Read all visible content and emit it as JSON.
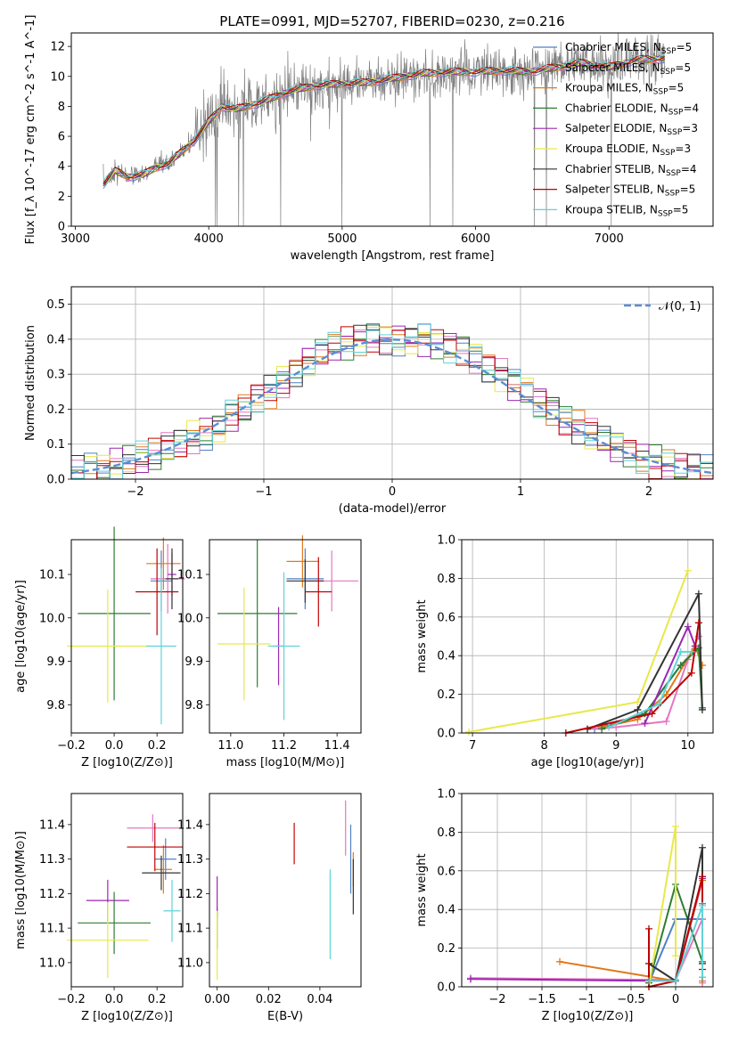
{
  "chart_data": [
    {
      "id": "spectrum",
      "type": "line",
      "title": "PLATE=0991, MJD=52707, FIBERID=0230, z=0.216",
      "xlabel": "wavelength [Angstrom, rest frame]",
      "ylabel": "Flux [f_λ 10^-17 erg cm^-2 s^-1 A^-1]",
      "xlim": [
        2970,
        7780
      ],
      "ylim": [
        0,
        12.9
      ],
      "xticks": [
        3000,
        4000,
        5000,
        6000,
        7000
      ],
      "yticks": [
        0,
        2,
        4,
        6,
        8,
        10,
        12
      ],
      "grid": false,
      "legend_position": "top-right",
      "data_color": "#808080",
      "data_x_range": [
        3210,
        7420
      ],
      "continuum": {
        "x": [
          3210,
          3300,
          3400,
          3500,
          3600,
          3700,
          3800,
          3900,
          4000,
          4100,
          4200,
          4400,
          4600,
          4800,
          5000,
          5200,
          5400,
          5600,
          5800,
          6000,
          6200,
          6400,
          6600,
          6800,
          7000,
          7200,
          7420
        ],
        "y": [
          2.8,
          3.7,
          3.3,
          3.4,
          3.9,
          4.2,
          5.0,
          5.8,
          7.0,
          8.0,
          7.8,
          8.3,
          9.0,
          9.4,
          9.5,
          9.6,
          9.9,
          10.2,
          10.3,
          10.3,
          10.4,
          10.3,
          10.6,
          10.9,
          10.6,
          11.1,
          11.2
        ]
      },
      "series": [
        {
          "name": "Chabrier MILES, N_SSP=5",
          "color": "#4f81c8"
        },
        {
          "name": "Salpeter MILES, N_SSP=5",
          "color": "#e377c2"
        },
        {
          "name": "Kroupa MILES, N_SSP=5",
          "color": "#e07a1a"
        },
        {
          "name": "Chabrier ELODIE, N_SSP=4",
          "color": "#2e7d32"
        },
        {
          "name": "Salpeter ELODIE, N_SSP=3",
          "color": "#9c27b0"
        },
        {
          "name": "Kroupa ELODIE, N_SSP=3",
          "color": "#e8e84a"
        },
        {
          "name": "Chabrier STELIB, N_SSP=4",
          "color": "#333333"
        },
        {
          "name": "Salpeter STELIB, N_SSP=5",
          "color": "#c00000"
        },
        {
          "name": "Kroupa STELIB, N_SSP=5",
          "color": "#5fd3d8"
        }
      ]
    },
    {
      "id": "residuals",
      "type": "histogram",
      "xlabel": "(data-model)/error",
      "ylabel": "Normed distribution",
      "xlim": [
        -2.5,
        2.5
      ],
      "ylim": [
        0,
        0.55
      ],
      "xticks": [
        -2,
        -1,
        0,
        1,
        2
      ],
      "yticks": [
        0.0,
        0.1,
        0.2,
        0.3,
        0.4,
        0.5
      ],
      "grid": true,
      "legend": "N(0,1)",
      "gaussian_color": "#5b8dd6",
      "bin_width": 0.1,
      "bin_centers": [
        -2.45,
        -2.35,
        -2.25,
        -2.15,
        -2.05,
        -1.95,
        -1.85,
        -1.75,
        -1.65,
        -1.55,
        -1.45,
        -1.35,
        -1.25,
        -1.15,
        -1.05,
        -0.95,
        -0.85,
        -0.75,
        -0.65,
        -0.55,
        -0.45,
        -0.35,
        -0.25,
        -0.15,
        -0.05,
        0.05,
        0.15,
        0.25,
        0.35,
        0.45,
        0.55,
        0.65,
        0.75,
        0.85,
        0.95,
        1.05,
        1.15,
        1.25,
        1.35,
        1.45,
        1.55,
        1.65,
        1.75,
        1.85,
        1.95,
        2.05,
        2.15,
        2.25,
        2.35,
        2.45
      ],
      "base_values": [
        0.02,
        0.03,
        0.03,
        0.04,
        0.05,
        0.06,
        0.07,
        0.09,
        0.1,
        0.12,
        0.13,
        0.15,
        0.18,
        0.2,
        0.23,
        0.25,
        0.28,
        0.31,
        0.34,
        0.36,
        0.38,
        0.39,
        0.4,
        0.41,
        0.4,
        0.4,
        0.4,
        0.4,
        0.39,
        0.38,
        0.37,
        0.35,
        0.32,
        0.3,
        0.27,
        0.25,
        0.22,
        0.2,
        0.17,
        0.15,
        0.13,
        0.11,
        0.09,
        0.08,
        0.06,
        0.05,
        0.04,
        0.03,
        0.03,
        0.02
      ]
    },
    {
      "id": "age-vs-Z",
      "type": "errorbar",
      "xlabel": "Z [log10(Z/Z⊙)]",
      "ylabel": "age [log10(age/yr)]",
      "xlim": [
        -0.2,
        0.32
      ],
      "ylim": [
        9.735,
        10.18
      ],
      "xticks": [
        -0.2,
        0.0,
        0.2
      ],
      "yticks": [
        9.8,
        9.9,
        10.0,
        10.1
      ],
      "points": [
        {
          "x": 0.22,
          "y": 10.085,
          "xerr": 0.05,
          "yerr": 0.07,
          "color": "#4f81c8"
        },
        {
          "x": 0.25,
          "y": 10.09,
          "xerr": 0.08,
          "yerr": 0.08,
          "color": "#e377c2"
        },
        {
          "x": 0.23,
          "y": 10.125,
          "xerr": 0.08,
          "yerr": 0.06,
          "color": "#e07a1a"
        },
        {
          "x": 0.0,
          "y": 10.01,
          "xerr": 0.17,
          "yerr": 0.2,
          "color": "#2e7d32"
        },
        {
          "x": 0.27,
          "y": 10.1,
          "xerr": 0.02,
          "yerr": 0.05,
          "color": "#9c27b0"
        },
        {
          "x": -0.03,
          "y": 9.935,
          "xerr": 0.19,
          "yerr": 0.13,
          "color": "#e8e84a"
        },
        {
          "x": 0.27,
          "y": 10.09,
          "xerr": 0.03,
          "yerr": 0.07,
          "color": "#333333"
        },
        {
          "x": 0.2,
          "y": 10.06,
          "xerr": 0.1,
          "yerr": 0.1,
          "color": "#c00000"
        },
        {
          "x": 0.22,
          "y": 9.935,
          "xerr": 0.07,
          "yerr": 0.18,
          "color": "#5fd3d8"
        }
      ]
    },
    {
      "id": "age-vs-mass",
      "type": "errorbar",
      "xlabel": "mass [log10(M/M⊙)]",
      "ylabel": "",
      "xlim": [
        10.92,
        11.49
      ],
      "ylim": [
        9.735,
        10.18
      ],
      "xticks": [
        11.0,
        11.2,
        11.4
      ],
      "yticks": [
        9.8,
        9.9,
        10.0,
        10.1
      ],
      "points": [
        {
          "x": 11.28,
          "y": 10.09,
          "xerr": 0.07,
          "yerr": 0.07,
          "color": "#4f81c8"
        },
        {
          "x": 11.38,
          "y": 10.085,
          "xerr": 0.1,
          "yerr": 0.07,
          "color": "#e377c2"
        },
        {
          "x": 11.27,
          "y": 10.13,
          "xerr": 0.06,
          "yerr": 0.06,
          "color": "#e07a1a"
        },
        {
          "x": 11.1,
          "y": 10.01,
          "xerr": 0.15,
          "yerr": 0.17,
          "color": "#2e7d32"
        },
        {
          "x": 11.18,
          "y": 9.935,
          "xerr": 0.02,
          "yerr": 0.09,
          "color": "#9c27b0"
        },
        {
          "x": 11.05,
          "y": 9.94,
          "xerr": 0.1,
          "yerr": 0.13,
          "color": "#e8e84a"
        },
        {
          "x": 11.28,
          "y": 10.085,
          "xerr": 0.07,
          "yerr": 0.05,
          "color": "#333333"
        },
        {
          "x": 11.33,
          "y": 10.06,
          "xerr": 0.05,
          "yerr": 0.08,
          "color": "#c00000"
        },
        {
          "x": 11.2,
          "y": 9.935,
          "xerr": 0.06,
          "yerr": 0.17,
          "color": "#5fd3d8"
        }
      ]
    },
    {
      "id": "massweight-vs-age",
      "type": "line",
      "xlabel": "age [log10(age/yr)]",
      "ylabel": "mass weight",
      "xlim": [
        6.85,
        10.35
      ],
      "ylim": [
        0,
        1
      ],
      "xticks": [
        7,
        8,
        9,
        10
      ],
      "yticks": [
        0.0,
        0.2,
        0.4,
        0.6,
        0.8,
        1.0
      ],
      "grid": true,
      "series": [
        {
          "color": "#4f81c8",
          "x": [
            8.7,
            9.4,
            9.9,
            10.1
          ],
          "y": [
            0.02,
            0.1,
            0.35,
            0.43
          ]
        },
        {
          "color": "#e377c2",
          "x": [
            8.6,
            9.0,
            9.7,
            10.0,
            10.15
          ],
          "y": [
            0.02,
            0.03,
            0.06,
            0.38,
            0.5
          ]
        },
        {
          "color": "#e07a1a",
          "x": [
            8.8,
            9.3,
            9.7,
            10.1,
            10.2
          ],
          "y": [
            0.03,
            0.07,
            0.2,
            0.45,
            0.35
          ]
        },
        {
          "color": "#2e7d32",
          "x": [
            8.8,
            9.4,
            9.9,
            10.15,
            10.2
          ],
          "y": [
            0.02,
            0.1,
            0.35,
            0.44,
            0.13
          ]
        },
        {
          "color": "#9c27b0",
          "x": [
            9.4,
            10.0,
            10.1
          ],
          "y": [
            0.05,
            0.55,
            0.45
          ]
        },
        {
          "color": "#e8e84a",
          "x": [
            6.95,
            9.3,
            10.0
          ],
          "y": [
            0.005,
            0.16,
            0.84
          ]
        },
        {
          "color": "#333333",
          "x": [
            8.6,
            9.3,
            10.15,
            10.2
          ],
          "y": [
            0.02,
            0.12,
            0.72,
            0.12
          ]
        },
        {
          "color": "#c00000",
          "x": [
            8.3,
            9.5,
            10.05,
            10.15
          ],
          "y": [
            0.0,
            0.1,
            0.31,
            0.57
          ]
        },
        {
          "color": "#5fd3d8",
          "x": [
            8.9,
            9.6,
            9.9,
            10.05
          ],
          "y": [
            0.03,
            0.15,
            0.42,
            0.42
          ]
        }
      ]
    },
    {
      "id": "mass-vs-Z",
      "type": "errorbar",
      "xlabel": "Z [log10(Z/Z⊙)]",
      "ylabel": "mass [log10(M/M⊙)]",
      "xlim": [
        -0.2,
        0.32
      ],
      "ylim": [
        10.93,
        11.49
      ],
      "xticks": [
        -0.2,
        0.0,
        0.2
      ],
      "yticks": [
        11.0,
        11.1,
        11.2,
        11.3,
        11.4
      ],
      "points": [
        {
          "x": 0.24,
          "y": 11.3,
          "xerr": 0.05,
          "yerr": 0.06,
          "color": "#4f81c8"
        },
        {
          "x": 0.18,
          "y": 11.39,
          "xerr": 0.12,
          "yerr": 0.04,
          "color": "#e377c2"
        },
        {
          "x": 0.23,
          "y": 11.27,
          "xerr": 0.04,
          "yerr": 0.07,
          "color": "#e07a1a"
        },
        {
          "x": 0.0,
          "y": 11.115,
          "xerr": 0.17,
          "yerr": 0.09,
          "color": "#2e7d32"
        },
        {
          "x": -0.03,
          "y": 11.18,
          "xerr": 0.1,
          "yerr": 0.06,
          "color": "#9c27b0"
        },
        {
          "x": -0.03,
          "y": 11.065,
          "xerr": 0.19,
          "yerr": 0.11,
          "color": "#e8e84a"
        },
        {
          "x": 0.22,
          "y": 11.26,
          "xerr": 0.09,
          "yerr": 0.05,
          "color": "#333333"
        },
        {
          "x": 0.19,
          "y": 11.335,
          "xerr": 0.13,
          "yerr": 0.07,
          "color": "#c00000"
        },
        {
          "x": 0.27,
          "y": 11.15,
          "xerr": 0.04,
          "yerr": 0.09,
          "color": "#5fd3d8"
        }
      ]
    },
    {
      "id": "mass-vs-EBV",
      "type": "errorbar",
      "xlabel": "E(B-V)",
      "ylabel": "",
      "xlim": [
        -0.003,
        0.056
      ],
      "ylim": [
        10.93,
        11.49
      ],
      "xticks": [
        0.0,
        0.02,
        0.04
      ],
      "yticks": [
        11.0,
        11.1,
        11.2,
        11.3,
        11.4
      ],
      "points": [
        {
          "x": 0.052,
          "y": 11.3,
          "yerr": 0.1,
          "color": "#4f81c8"
        },
        {
          "x": 0.05,
          "y": 11.39,
          "yerr": 0.08,
          "color": "#e377c2"
        },
        {
          "x": 0.053,
          "y": 11.27,
          "yerr": 0.05,
          "color": "#e07a1a"
        },
        {
          "x": 0.0,
          "y": 11.1,
          "yerr": 0.06,
          "color": "#2e7d32"
        },
        {
          "x": 0.0,
          "y": 11.19,
          "yerr": 0.06,
          "color": "#9c27b0"
        },
        {
          "x": 0.0,
          "y": 11.05,
          "yerr": 0.1,
          "color": "#e8e84a"
        },
        {
          "x": 0.053,
          "y": 11.22,
          "yerr": 0.08,
          "color": "#333333"
        },
        {
          "x": 0.03,
          "y": 11.345,
          "yerr": 0.06,
          "color": "#c00000"
        },
        {
          "x": 0.044,
          "y": 11.14,
          "yerr": 0.13,
          "color": "#5fd3d8"
        }
      ]
    },
    {
      "id": "massweight-vs-Z",
      "type": "line",
      "xlabel": "Z [log10(Z/Z⊙)]",
      "ylabel": "mass weight",
      "xlim": [
        -2.4,
        0.42
      ],
      "ylim": [
        0,
        1
      ],
      "xticks": [
        -2.0,
        -1.5,
        -1.0,
        -0.5,
        0.0
      ],
      "yticks": [
        0.0,
        0.2,
        0.4,
        0.6,
        0.8,
        1.0
      ],
      "grid": true,
      "series": [
        {
          "color": "#4f81c8",
          "x": [
            -0.3,
            0.0,
            0.3,
            0.3
          ],
          "y": [
            0.02,
            0.35,
            0.35,
            0.43
          ]
        },
        {
          "color": "#e377c2",
          "x": [
            -2.3,
            0.0,
            0.3,
            0.3
          ],
          "y": [
            0.045,
            0.035,
            0.35,
            0.02
          ]
        },
        {
          "color": "#e07a1a",
          "x": [
            -1.3,
            0.0,
            0.3,
            0.3
          ],
          "y": [
            0.13,
            0.03,
            0.55,
            0.03
          ]
        },
        {
          "color": "#2e7d32",
          "x": [
            -0.3,
            0.0,
            0.3,
            0.3
          ],
          "y": [
            0.02,
            0.53,
            0.13,
            0.05
          ]
        },
        {
          "color": "#9c27b0",
          "x": [
            -2.3,
            0.0,
            0.3
          ],
          "y": [
            0.04,
            0.03,
            0.56
          ]
        },
        {
          "color": "#e8e84a",
          "x": [
            -0.3,
            0.0,
            0.0
          ],
          "y": [
            0.0,
            0.83,
            0.16
          ]
        },
        {
          "color": "#333333",
          "x": [
            -0.3,
            0.0,
            0.3,
            0.3
          ],
          "y": [
            0.12,
            0.03,
            0.72,
            0.12
          ]
        },
        {
          "color": "#c00000",
          "x": [
            -0.3,
            -0.3,
            0.0,
            0.3,
            0.3
          ],
          "y": [
            0.3,
            0.0,
            0.03,
            0.57,
            0.09
          ]
        },
        {
          "color": "#5fd3d8",
          "x": [
            -0.3,
            0.0,
            0.3,
            0.3
          ],
          "y": [
            0.03,
            0.03,
            0.42,
            0.05
          ]
        }
      ]
    }
  ],
  "legend_residuals": "𝒩(0, 1)"
}
